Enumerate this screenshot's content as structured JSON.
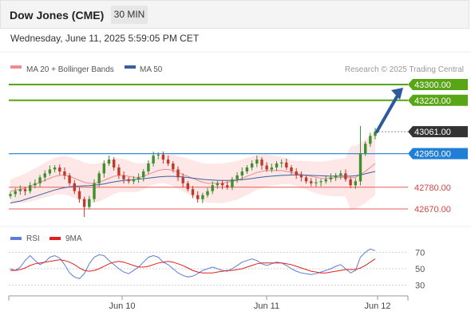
{
  "header": {
    "instrument": "Dow Jones (CME)",
    "timeframe": "30 MIN",
    "datetime": "Wednesday, June 11, 2025 5:59:05 PM CET"
  },
  "legend": {
    "ma20": "MA 20 + Bollinger Bands",
    "ma50": "MA 50",
    "copyright": "Research © 2025 Trading Central",
    "rsi": "RSI",
    "rsi_ma": "9MA"
  },
  "colors": {
    "resistance": "#58a516",
    "pivot": "#1f7fd6",
    "support": "#e85a5a",
    "last_price": "#333333",
    "ma20": "#f08c8c",
    "ma50": "#3a5fa0",
    "bollinger_fill": "#fde4e4",
    "arrow": "#2d5a9c",
    "bull_candle": "#3f8f2f",
    "bear_candle": "#c0392b",
    "rsi": "#5b7fd6",
    "rsi_ma": "#e02020"
  },
  "chart_data": [
    {
      "type": "candlestick",
      "title": "",
      "price_axis": {
        "ymin": 42620,
        "ymax": 43340,
        "scale": "linear"
      },
      "time_axis": {
        "labels": [
          "Jun 10",
          "Jun 11",
          "Jun 12"
        ]
      },
      "levels": [
        {
          "label": "43300.00",
          "value": 43300,
          "kind": "resistance"
        },
        {
          "label": "43220.00",
          "value": 43220,
          "kind": "resistance"
        },
        {
          "label": "43061.00",
          "value": 43061,
          "kind": "last"
        },
        {
          "label": "42950.00",
          "value": 42950,
          "kind": "pivot"
        },
        {
          "label": "42780.00",
          "value": 42780,
          "kind": "support"
        },
        {
          "label": "42670.00",
          "value": 42670,
          "kind": "support"
        }
      ],
      "projection": {
        "from": 43061,
        "to": 43300,
        "direction": "up"
      },
      "close_path": [
        42745,
        42760,
        42770,
        42760,
        42790,
        42800,
        42830,
        42850,
        42870,
        42880,
        42860,
        42840,
        42800,
        42760,
        42720,
        42680,
        42720,
        42800,
        42850,
        42900,
        42920,
        42880,
        42840,
        42820,
        42810,
        42820,
        42830,
        42860,
        42900,
        42940,
        42945,
        42920,
        42900,
        42870,
        42830,
        42800,
        42770,
        42740,
        42720,
        42740,
        42760,
        42790,
        42800,
        42790,
        42780,
        42820,
        42840,
        42860,
        42880,
        42900,
        42920,
        42890,
        42870,
        42880,
        42900,
        42905,
        42880,
        42860,
        42840,
        42830,
        42810,
        42800,
        42805,
        42810,
        42820,
        42830,
        42840,
        42850,
        42820,
        42790,
        42810,
        42950,
        43000,
        43040,
        43061
      ],
      "ma20": [
        42760,
        42765,
        42770,
        42775,
        42785,
        42795,
        42805,
        42815,
        42825,
        42835,
        42840,
        42840,
        42835,
        42825,
        42815,
        42805,
        42800,
        42800,
        42805,
        42815,
        42825,
        42835,
        42840,
        42840,
        42835,
        42830,
        42830,
        42835,
        42845,
        42855,
        42865,
        42870,
        42870,
        42865,
        42855,
        42845,
        42835,
        42825,
        42815,
        42805,
        42800,
        42800,
        42800,
        42800,
        42805,
        42810,
        42815,
        42825,
        42835,
        42845,
        42855,
        42860,
        42865,
        42865,
        42865,
        42865,
        42860,
        42855,
        42850,
        42845,
        42840,
        42835,
        42830,
        42825,
        42825,
        42825,
        42828,
        42830,
        42830,
        42828,
        42830,
        42845,
        42860,
        42880,
        42900
      ],
      "ma50": [
        42700,
        42705,
        42710,
        42718,
        42726,
        42734,
        42742,
        42750,
        42758,
        42766,
        42772,
        42778,
        42782,
        42785,
        42786,
        42787,
        42788,
        42790,
        42793,
        42797,
        42802,
        42807,
        42811,
        42814,
        42817,
        42819,
        42821,
        42823,
        42826,
        42829,
        42832,
        42834,
        42835,
        42835,
        42834,
        42832,
        42829,
        42826,
        42823,
        42820,
        42818,
        42816,
        42815,
        42814,
        42814,
        42815,
        42816,
        42818,
        42821,
        42824,
        42828,
        42831,
        42834,
        42836,
        42838,
        42840,
        42841,
        42842,
        42842,
        42842,
        42841,
        42840,
        42839,
        42838,
        42837,
        42836,
        42836,
        42836,
        42836,
        42836,
        42838,
        42842,
        42848,
        42854,
        42860
      ]
    },
    {
      "type": "line",
      "title": "",
      "y_axis": {
        "ticks": [
          70,
          50,
          30
        ],
        "ymin": 20,
        "ymax": 80
      },
      "series": [
        {
          "name": "RSI",
          "values": [
            50,
            48,
            52,
            60,
            66,
            60,
            55,
            58,
            64,
            66,
            63,
            55,
            45,
            40,
            38,
            44,
            56,
            64,
            67,
            66,
            60,
            55,
            50,
            46,
            44,
            48,
            52,
            58,
            64,
            66,
            64,
            58,
            55,
            50,
            45,
            42,
            40,
            41,
            44,
            48,
            50,
            52,
            50,
            48,
            47,
            50,
            54,
            58,
            60,
            62,
            60,
            56,
            54,
            56,
            58,
            57,
            54,
            50,
            47,
            45,
            44,
            43,
            44,
            46,
            48,
            50,
            53,
            55,
            50,
            45,
            48,
            64,
            70,
            74,
            72
          ]
        },
        {
          "name": "9MA",
          "values": [
            48,
            48,
            49,
            51,
            54,
            56,
            57,
            58,
            59,
            60,
            61,
            60,
            58,
            55,
            51,
            48,
            47,
            48,
            50,
            53,
            56,
            58,
            59,
            58,
            56,
            54,
            52,
            52,
            53,
            55,
            57,
            58,
            59,
            58,
            56,
            54,
            51,
            48,
            46,
            45,
            45,
            45,
            46,
            47,
            48,
            48,
            49,
            50,
            52,
            54,
            56,
            57,
            57,
            57,
            57,
            57,
            56,
            55,
            53,
            51,
            49,
            47,
            46,
            45,
            45,
            46,
            47,
            48,
            49,
            49,
            49,
            51,
            54,
            58,
            62
          ]
        }
      ]
    }
  ]
}
